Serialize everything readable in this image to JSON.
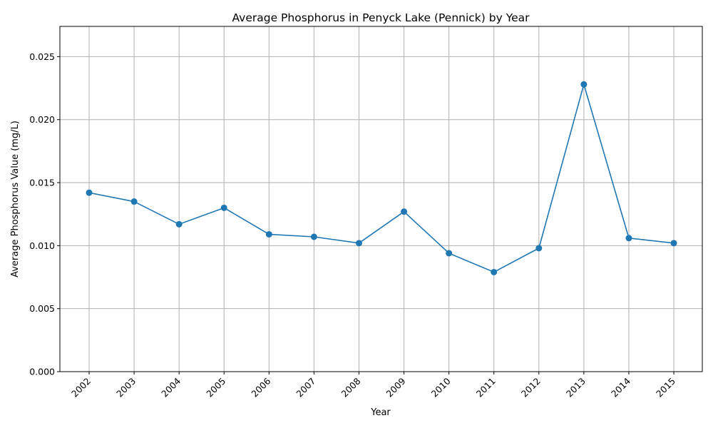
{
  "chart_data": {
    "type": "line",
    "title": "Average Phosphorus in Penyck Lake (Pennick) by Year",
    "xlabel": "Year",
    "ylabel": "Average Phosphorus Value (mg/L)",
    "categories": [
      "2002",
      "2003",
      "2004",
      "2005",
      "2006",
      "2007",
      "2008",
      "2009",
      "2010",
      "2011",
      "2012",
      "2013",
      "2014",
      "2015"
    ],
    "series": [
      {
        "values": [
          0.0142,
          0.0135,
          0.0117,
          0.013,
          0.0109,
          0.0107,
          0.0102,
          0.0127,
          0.0094,
          0.0079,
          0.0098,
          0.0228,
          0.0106,
          0.0102
        ]
      }
    ],
    "ylim": [
      0,
      0.0274
    ],
    "yticks": [
      "0.000",
      "0.005",
      "0.010",
      "0.015",
      "0.020",
      "0.025"
    ],
    "grid": true,
    "x_tick_rotation": "45 degrees",
    "line_color": "#1f77b4",
    "marker": "circle"
  }
}
